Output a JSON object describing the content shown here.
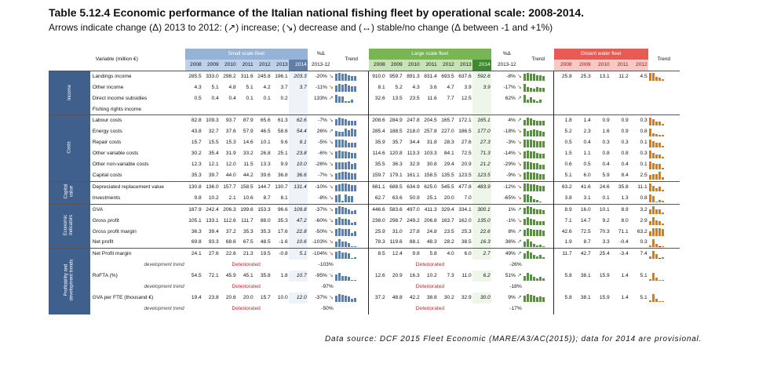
{
  "title": "Table 5.12.4 Economic performance of the Italian national fishing fleet by operational scale: 2008-2014.",
  "subtitle": "Arrows indicate change (Δ) 2013 to 2012: (↗) increase; (↘) decrease and (↔) stable/no change (Δ between -1 and +1%)",
  "source": "Data source: DCF 2015 Fleet Economic (MARE/A3/AC(2015)); data for 2014 are provisional.",
  "headers": {
    "variable": "Variable (million €)",
    "small_scale": "Small scale fleet",
    "large_scale": "Large scale fleet",
    "distant_water": "Distant water fleet",
    "delta": "%Δ",
    "delta_years": "2013-12",
    "trend": "Trend",
    "years7": [
      "2008",
      "2009",
      "2010",
      "2011",
      "2012",
      "2013",
      "2014"
    ],
    "years5": [
      "2008",
      "2009",
      "2010",
      "2011",
      "2012"
    ]
  },
  "categories": {
    "income": "Income",
    "costs": "Costs",
    "capital": "Capital value",
    "economic": "Economic Indicators",
    "profitability": "Profitability and development trends"
  },
  "dev_trend": "development trend",
  "deteriorated": "Deteriorated",
  "rows": [
    {
      "label": "Landings income",
      "cat": "income",
      "ssf": [
        "285.5",
        "333.0",
        "298.2",
        "311.6",
        "245.8",
        "196.1",
        "203.3"
      ],
      "ssf_d": "-20%",
      "ssf_a": "down",
      "lsf": [
        "910.0",
        "959.7",
        "891.3",
        "831.4",
        "693.5",
        "637.6",
        "592.6"
      ],
      "lsf_d": "-8%",
      "lsf_a": "down",
      "dwf": [
        "25.8",
        "25.3",
        "13.1",
        "11.2",
        "4.5"
      ]
    },
    {
      "label": "Other income",
      "cat": "income",
      "ssf": [
        "4.3",
        "5.1",
        "4.8",
        "5.1",
        "4.2",
        "3.7",
        "3.7"
      ],
      "ssf_d": "-11%",
      "ssf_a": "down",
      "lsf": [
        "8.1",
        "5.2",
        "4.3",
        "3.6",
        "4.7",
        "3.9",
        "3.9"
      ],
      "lsf_d": "-17%",
      "lsf_a": "down",
      "dwf": [
        "",
        "",
        "",
        "",
        ""
      ]
    },
    {
      "label": "Direct income subsidies",
      "cat": "income",
      "ssf": [
        "0.5",
        "0.4",
        "0.4",
        "0.1",
        "0.1",
        "0.2",
        ""
      ],
      "ssf_d": "133%",
      "ssf_a": "up",
      "lsf": [
        "32.6",
        "13.5",
        "23.5",
        "11.6",
        "7.7",
        "12.5",
        ""
      ],
      "lsf_d": "62%",
      "lsf_a": "up",
      "dwf": [
        "",
        "",
        "",
        "",
        ""
      ]
    },
    {
      "label": "Fishing rights income",
      "cat": "income",
      "ssf": [
        "",
        "",
        "",
        "",
        "",
        "",
        ""
      ],
      "ssf_d": "",
      "ssf_a": "",
      "lsf": [
        "",
        "",
        "",
        "",
        "",
        "",
        ""
      ],
      "lsf_d": "",
      "lsf_a": "",
      "dwf": [
        "",
        "",
        "",
        "",
        ""
      ]
    },
    {
      "label": "Labour costs",
      "cat": "costs",
      "ssf": [
        "82.8",
        "109.3",
        "93.7",
        "87.9",
        "65.6",
        "61.3",
        "62.6"
      ],
      "ssf_d": "-7%",
      "ssf_a": "down",
      "lsf": [
        "208.6",
        "284.9",
        "247.8",
        "204.5",
        "165.7",
        "172.1",
        "165.1"
      ],
      "lsf_d": "4%",
      "lsf_a": "up",
      "dwf": [
        "1.8",
        "1.4",
        "0.9",
        "0.9",
        "0.3"
      ]
    },
    {
      "label": "Energy costs",
      "cat": "costs",
      "ssf": [
        "43.8",
        "32.7",
        "37.6",
        "57.9",
        "46.5",
        "58.6",
        "54.4"
      ],
      "ssf_d": "26%",
      "ssf_a": "up",
      "lsf": [
        "285.4",
        "188.5",
        "218.0",
        "257.8",
        "227.0",
        "186.5",
        "177.0"
      ],
      "lsf_d": "-18%",
      "lsf_a": "down",
      "dwf": [
        "5.2",
        "2.3",
        "1.6",
        "0.9",
        "0.8"
      ]
    },
    {
      "label": "Repair costs",
      "cat": "costs",
      "ssf": [
        "15.7",
        "15.5",
        "15.3",
        "14.6",
        "10.1",
        "9.6",
        "9.1"
      ],
      "ssf_d": "-5%",
      "ssf_a": "down",
      "lsf": [
        "35.9",
        "35.7",
        "34.4",
        "31.8",
        "28.3",
        "27.6",
        "27.3"
      ],
      "lsf_d": "-3%",
      "lsf_a": "down",
      "dwf": [
        "0.5",
        "0.4",
        "0.3",
        "0.3",
        "0.1"
      ]
    },
    {
      "label": "Other variable costs",
      "cat": "costs",
      "ssf": [
        "30.2",
        "35.4",
        "31.9",
        "33.2",
        "26.8",
        "25.1",
        "23.8"
      ],
      "ssf_d": "-6%",
      "ssf_a": "down",
      "lsf": [
        "114.6",
        "120.8",
        "113.3",
        "103.3",
        "84.1",
        "72.5",
        "71.3"
      ],
      "lsf_d": "-14%",
      "lsf_a": "down",
      "dwf": [
        "1.5",
        "1.1",
        "0.8",
        "0.8",
        "0.3"
      ]
    },
    {
      "label": "Other non-variable costs",
      "cat": "costs",
      "ssf": [
        "12.3",
        "12.1",
        "12.0",
        "11.5",
        "13.3",
        "9.9",
        "10.0"
      ],
      "ssf_d": "-26%",
      "ssf_a": "down",
      "lsf": [
        "35.5",
        "36.3",
        "32.9",
        "30.8",
        "29.4",
        "20.9",
        "21.2"
      ],
      "lsf_d": "-29%",
      "lsf_a": "down",
      "dwf": [
        "0.6",
        "0.5",
        "0.4",
        "0.4",
        "0.1"
      ]
    },
    {
      "label": "Capital costs",
      "cat": "costs",
      "ssf": [
        "35.3",
        "39.7",
        "44.0",
        "44.2",
        "39.6",
        "36.8",
        "36.6"
      ],
      "ssf_d": "-7%",
      "ssf_a": "down",
      "lsf": [
        "159.7",
        "179.1",
        "161.1",
        "158.5",
        "135.5",
        "123.5",
        "123.5"
      ],
      "lsf_d": "-9%",
      "lsf_a": "down",
      "dwf": [
        "5.1",
        "6.0",
        "5.9",
        "8.4",
        "2.5"
      ]
    },
    {
      "label": "Depreciated replacement value",
      "cat": "capital",
      "ssf": [
        "130.8",
        "136.0",
        "157.7",
        "158.5",
        "144.7",
        "130.7",
        "131.4"
      ],
      "ssf_d": "-10%",
      "ssf_a": "down",
      "lsf": [
        "681.1",
        "688.5",
        "634.9",
        "625.0",
        "545.5",
        "477.8",
        "483.9"
      ],
      "lsf_d": "-12%",
      "lsf_a": "down",
      "dwf": [
        "63.2",
        "41.6",
        "24.6",
        "35.8",
        "11.1"
      ]
    },
    {
      "label": "Investments",
      "cat": "capital",
      "ssf": [
        "9.8",
        "10.2",
        "2.1",
        "10.6",
        "8.7",
        "8.1",
        ""
      ],
      "ssf_d": "-8%",
      "ssf_a": "down",
      "lsf": [
        "62.7",
        "63.6",
        "50.9",
        "25.1",
        "20.0",
        "7.0",
        ""
      ],
      "lsf_d": "-65%",
      "lsf_a": "down",
      "dwf": [
        "3.8",
        "3.1",
        "0.1",
        "1.3",
        "0.8"
      ]
    },
    {
      "label": "GVA",
      "cat": "economic",
      "ssf": [
        "187.9",
        "242.4",
        "206.3",
        "199.6",
        "153.3",
        "96.6",
        "109.8"
      ],
      "ssf_d": "-37%",
      "ssf_a": "down",
      "lsf": [
        "446.6",
        "583.6",
        "497.0",
        "411.3",
        "329.4",
        "334.1",
        "300.1"
      ],
      "lsf_d": "1%",
      "lsf_a": "up",
      "dwf": [
        "8.9",
        "16.0",
        "10.1",
        "8.9",
        "3.2"
      ]
    },
    {
      "label": "Gross profit",
      "cat": "economic",
      "ssf": [
        "105.1",
        "133.1",
        "112.6",
        "111.7",
        "88.0",
        "35.3",
        "47.2"
      ],
      "ssf_d": "-60%",
      "ssf_a": "down",
      "lsf": [
        "238.0",
        "298.7",
        "249.2",
        "206.8",
        "163.7",
        "162.0",
        "135.0"
      ],
      "lsf_d": "-1%",
      "lsf_a": "down",
      "dwf": [
        "7.1",
        "14.7",
        "9.2",
        "8.0",
        "2.9"
      ]
    },
    {
      "label": "Gross profit margin",
      "cat": "economic",
      "ssf": [
        "36.3",
        "39.4",
        "37.2",
        "35.3",
        "35.3",
        "17.6",
        "22.8"
      ],
      "ssf_d": "-50%",
      "ssf_a": "down",
      "lsf": [
        "25.9",
        "31.0",
        "27.8",
        "24.8",
        "23.5",
        "25.3",
        "22.6"
      ],
      "lsf_d": "8%",
      "lsf_a": "up",
      "dwf": [
        "42.6",
        "72.5",
        "70.3",
        "71.1",
        "63.2"
      ]
    },
    {
      "label": "Net profit",
      "cat": "economic",
      "ssf": [
        "69.8",
        "93.3",
        "68.6",
        "67.5",
        "48.5",
        "-1.6",
        "10.6"
      ],
      "ssf_d": "-103%",
      "ssf_a": "down",
      "lsf": [
        "78.3",
        "119.6",
        "88.1",
        "48.3",
        "28.2",
        "38.5",
        "16.3"
      ],
      "lsf_d": "36%",
      "lsf_a": "up",
      "dwf": [
        "1.9",
        "8.7",
        "3.3",
        "-0.4",
        "0.3"
      ]
    },
    {
      "label": "Net Profit margin",
      "cat": "profitability",
      "ssf": [
        "24.1",
        "27.6",
        "22.6",
        "21.3",
        "19.5",
        "-0.8",
        "5.1"
      ],
      "ssf_d": "-104%",
      "ssf_a": "down",
      "lsf": [
        "8.5",
        "12.4",
        "9.8",
        "5.8",
        "4.0",
        "6.0",
        "2.7"
      ],
      "lsf_d": "49%",
      "lsf_a": "up",
      "dwf": [
        "11.7",
        "42.7",
        "25.4",
        "-3.4",
        "7.4"
      ]
    },
    {
      "dev": true,
      "ssf_d": "-103%",
      "lsf_d": "-26%"
    },
    {
      "label": "RoFTA (%)",
      "cat": "profitability",
      "ssf": [
        "54.5",
        "72.1",
        "45.9",
        "45.1",
        "35.8",
        "1.8",
        "10.7"
      ],
      "ssf_d": "-95%",
      "ssf_a": "down",
      "lsf": [
        "12.6",
        "20.9",
        "16.3",
        "10.2",
        "7.3",
        "11.0",
        "6.2"
      ],
      "lsf_d": "51%",
      "lsf_a": "up",
      "dwf": [
        "5.8",
        "38.1",
        "15.9",
        "1.4",
        "5.1"
      ]
    },
    {
      "dev": true,
      "ssf_d": "-97%",
      "lsf_d": "-18%"
    },
    {
      "label": "GVA per FTE (thousand €)",
      "cat": "profitability",
      "ssf": [
        "19.4",
        "23.8",
        "20.6",
        "20.0",
        "15.7",
        "10.0",
        "12.0"
      ],
      "ssf_d": "-37%",
      "ssf_a": "down",
      "lsf": [
        "37.2",
        "48.8",
        "42.2",
        "38.8",
        "30.2",
        "32.9",
        "30.0"
      ],
      "lsf_d": "9%",
      "lsf_a": "up",
      "dwf": [
        "5.8",
        "38.1",
        "15.9",
        "1.4",
        "5.1"
      ]
    },
    {
      "dev": true,
      "ssf_d": "-50%",
      "lsf_d": "-17%"
    }
  ],
  "colors": {
    "ssf": "#95b3d7",
    "lsf": "#77b555",
    "dwf": "#e85a54",
    "category": "#3f5f8c",
    "deteriorated": "#c62828",
    "arrow_up": "#2e7d32",
    "arrow_down": "#d84315"
  }
}
